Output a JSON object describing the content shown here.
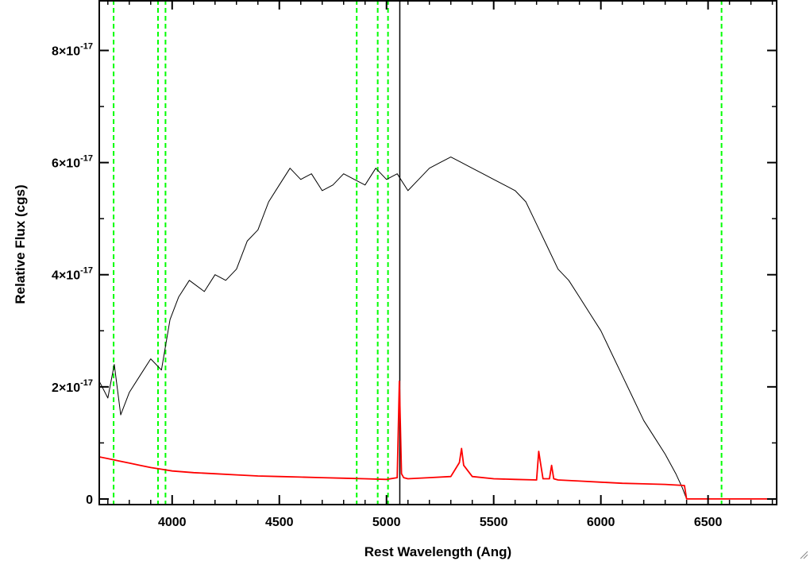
{
  "chart_data": {
    "type": "line",
    "xlabel": "Rest Wavelength (Ang)",
    "ylabel": "Relative Flux (cgs)",
    "xlim": [
      3660,
      6820
    ],
    "ylim": [
      -1e-18,
      8.9e-17
    ],
    "x_ticks": [
      4000,
      4500,
      5000,
      5500,
      6000,
      6500
    ],
    "x_tick_labels": [
      "4000",
      "4500",
      "5000",
      "5500",
      "6000",
      "6500"
    ],
    "y_ticks": [
      0,
      2e-17,
      4e-17,
      6e-17,
      8e-17
    ],
    "y_tick_labels": [
      {
        "mantissa": "0",
        "exponent": ""
      },
      {
        "mantissa": "2×10",
        "exponent": "-17"
      },
      {
        "mantissa": "4×10",
        "exponent": "-17"
      },
      {
        "mantissa": "6×10",
        "exponent": "-17"
      },
      {
        "mantissa": "8×10",
        "exponent": "-17"
      }
    ],
    "series": [
      {
        "color": "#000000",
        "x": [
          3660,
          3700,
          3730,
          3760,
          3800,
          3850,
          3900,
          3950,
          3990,
          4030,
          4080,
          4150,
          4200,
          4250,
          4300,
          4350,
          4400,
          4450,
          4500,
          4550,
          4600,
          4650,
          4700,
          4750,
          4800,
          4850,
          4900,
          4950,
          5000,
          5050,
          5100,
          5150,
          5200,
          5250,
          5300,
          5350,
          5400,
          5450,
          5500,
          5550,
          5600,
          5650,
          5700,
          5750,
          5800,
          5850,
          5900,
          5950,
          6000,
          6050,
          6100,
          6150,
          6200,
          6250,
          6300,
          6350,
          6380,
          6400,
          6820
        ],
        "y": [
          2.1e-17,
          1.8e-17,
          2.4e-17,
          1.5e-17,
          1.9e-17,
          2.2e-17,
          2.5e-17,
          2.3e-17,
          3.2e-17,
          3.6e-17,
          3.9e-17,
          3.7e-17,
          4e-17,
          3.9e-17,
          4.1e-17,
          4.6e-17,
          4.8e-17,
          5.3e-17,
          5.6e-17,
          5.9e-17,
          5.7e-17,
          5.8e-17,
          5.5e-17,
          5.6e-17,
          5.8e-17,
          5.7e-17,
          5.6e-17,
          5.9e-17,
          5.7e-17,
          5.8e-17,
          5.5e-17,
          5.7e-17,
          5.9e-17,
          6e-17,
          6.1e-17,
          6e-17,
          5.9e-17,
          5.8e-17,
          5.7e-17,
          5.6e-17,
          5.5e-17,
          5.3e-17,
          4.9e-17,
          4.5e-17,
          4.1e-17,
          3.9e-17,
          3.6e-17,
          3.3e-17,
          3e-17,
          2.6e-17,
          2.2e-17,
          1.8e-17,
          1.4e-17,
          1.1e-17,
          8e-18,
          4.5e-18,
          2e-18,
          0,
          0
        ]
      },
      {
        "color": "#ff0000",
        "x": [
          3660,
          3700,
          3750,
          3800,
          3850,
          3900,
          3950,
          4000,
          4100,
          4200,
          4300,
          4400,
          4500,
          4600,
          4700,
          4800,
          4900,
          5000,
          5050,
          5060,
          5070,
          5080,
          5100,
          5200,
          5300,
          5340,
          5350,
          5360,
          5400,
          5500,
          5600,
          5700,
          5710,
          5720,
          5730,
          5760,
          5770,
          5780,
          5800,
          5900,
          6000,
          6100,
          6200,
          6300,
          6390,
          6400,
          6820
        ],
        "y": [
          7.5e-18,
          7.2e-18,
          6.8e-18,
          6.4e-18,
          6e-18,
          5.6e-18,
          5.3e-18,
          5e-18,
          4.7e-18,
          4.5e-18,
          4.3e-18,
          4.1e-18,
          4e-18,
          3.9e-18,
          3.8e-18,
          3.7e-18,
          3.6e-18,
          3.5e-18,
          3.8e-18,
          2.1e-17,
          4.5e-18,
          3.8e-18,
          3.6e-18,
          3.8e-18,
          4e-18,
          6.5e-18,
          9e-18,
          6e-18,
          4e-18,
          3.6e-18,
          3.5e-18,
          3.4e-18,
          8.5e-18,
          6e-18,
          3.6e-18,
          3.6e-18,
          6e-18,
          3.6e-18,
          3.4e-18,
          3.2e-18,
          3e-18,
          2.8e-18,
          2.7e-18,
          2.6e-18,
          2.4e-18,
          0,
          0
        ]
      }
    ],
    "vertical_lines": [
      {
        "x": 3727,
        "color": "#00ff00",
        "style": "dashed"
      },
      {
        "x": 3934,
        "color": "#00ff00",
        "style": "dashed"
      },
      {
        "x": 3969,
        "color": "#00ff00",
        "style": "dashed"
      },
      {
        "x": 4861,
        "color": "#00ff00",
        "style": "dashed"
      },
      {
        "x": 4959,
        "color": "#00ff00",
        "style": "dashed"
      },
      {
        "x": 5007,
        "color": "#00ff00",
        "style": "dashed"
      },
      {
        "x": 6563,
        "color": "#00ff00",
        "style": "dashed"
      },
      {
        "x": 5062,
        "color": "#000000",
        "style": "solid"
      }
    ]
  }
}
